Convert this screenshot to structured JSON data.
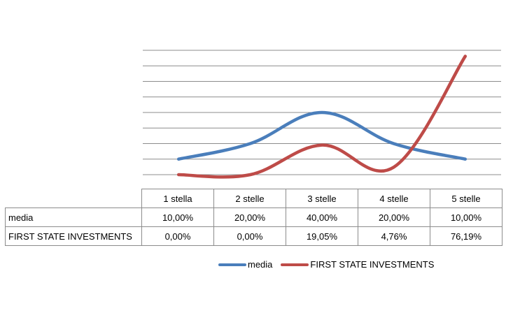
{
  "chart_data": {
    "type": "line",
    "smooth": true,
    "categories": [
      "1 stella",
      "2 stelle",
      "3 stelle",
      "4 stelle",
      "5 stelle"
    ],
    "series": [
      {
        "name": "media",
        "color": "#4a7ebb",
        "values": [
          10.0,
          20.0,
          40.0,
          20.0,
          10.0
        ],
        "labels": [
          "10,00%",
          "20,00%",
          "40,00%",
          "20,00%",
          "10,00%"
        ]
      },
      {
        "name": "FIRST STATE INVESTMENTS",
        "color": "#be4b48",
        "values": [
          0.0,
          0.0,
          19.05,
          4.76,
          76.19
        ],
        "labels": [
          "0,00%",
          "0,00%",
          "19,05%",
          "4,76%",
          "76,19%"
        ]
      }
    ],
    "ylim": [
      0,
      80
    ],
    "y_axis_labels_shown": false,
    "grid": true,
    "legend_position": "bottom",
    "data_table": true
  }
}
